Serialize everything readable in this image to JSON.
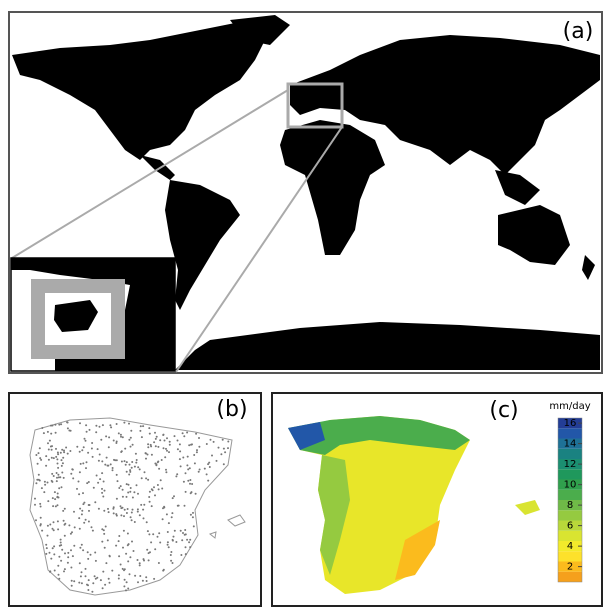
{
  "panels": [
    {
      "label": "(a)"
    },
    {
      "label": "(b)"
    },
    {
      "label": "(c)",
      "colorbar": {
        "title": "mm/day",
        "lim": [
          0.5,
          16.5
        ],
        "ticks": [
          2,
          4,
          6,
          8,
          10,
          12,
          14,
          16
        ],
        "colors": [
          "#f5a01c",
          "#fbbb1d",
          "#fde12b",
          "#f2ea2b",
          "#d9e431",
          "#b9d83a",
          "#95ca40",
          "#6fba47",
          "#4bad4c",
          "#30a04d",
          "#1f985c",
          "#1b8f71",
          "#1a8281",
          "#1e7196",
          "#2257a8",
          "#233d96"
        ]
      }
    }
  ]
}
